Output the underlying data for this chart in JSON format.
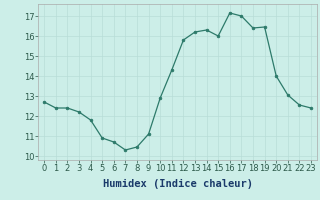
{
  "x": [
    0,
    1,
    2,
    3,
    4,
    5,
    6,
    7,
    8,
    9,
    10,
    11,
    12,
    13,
    14,
    15,
    16,
    17,
    18,
    19,
    20,
    21,
    22,
    23
  ],
  "y": [
    12.7,
    12.4,
    12.4,
    12.2,
    11.8,
    10.9,
    10.7,
    10.3,
    10.45,
    11.1,
    12.9,
    14.3,
    15.8,
    16.2,
    16.3,
    16.0,
    17.15,
    17.0,
    16.4,
    16.45,
    14.0,
    13.05,
    12.55,
    12.4
  ],
  "xlabel": "Humidex (Indice chaleur)",
  "ylim": [
    9.8,
    17.6
  ],
  "xlim": [
    -0.5,
    23.5
  ],
  "yticks": [
    10,
    11,
    12,
    13,
    14,
    15,
    16,
    17
  ],
  "xticks": [
    0,
    1,
    2,
    3,
    4,
    5,
    6,
    7,
    8,
    9,
    10,
    11,
    12,
    13,
    14,
    15,
    16,
    17,
    18,
    19,
    20,
    21,
    22,
    23
  ],
  "line_color": "#2d7a6a",
  "marker_color": "#2d7a6a",
  "bg_color": "#cceee8",
  "grid_color": "#b8ddd8",
  "xlabel_fontsize": 7.5,
  "tick_fontsize": 6.0
}
